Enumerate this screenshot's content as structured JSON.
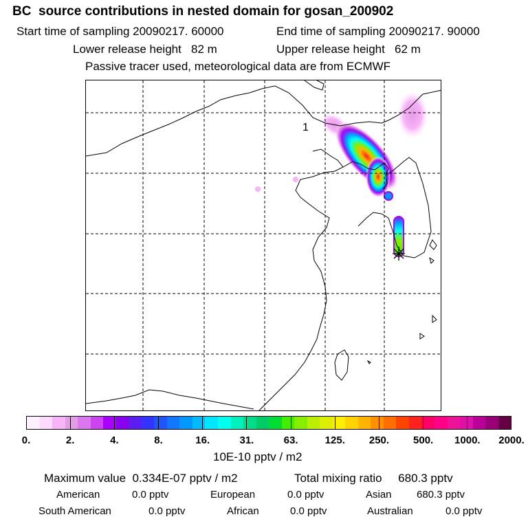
{
  "title": "BC  source contributions in nested domain for gosan_200902",
  "header": {
    "start_time": "Start time of sampling 20090217. 60000",
    "end_time": "End time of sampling 20090217. 90000",
    "lower_height": "Lower release height   82 m",
    "upper_height": "Upper release height   62 m",
    "tracer_note": "Passive tracer used, meteorological data are from ECMWF"
  },
  "map": {
    "label": "1",
    "receptor": "gosan"
  },
  "colorbar": {
    "colors": [
      "#fff0ff",
      "#ffd9ff",
      "#f7b4f7",
      "#e59be5",
      "#dd77f0",
      "#cc44ee",
      "#aa00ff",
      "#8800ee",
      "#5a1ef0",
      "#3333ff",
      "#1e55ff",
      "#1177ff",
      "#0099ff",
      "#00bbff",
      "#00e6ff",
      "#00ffee",
      "#00f0c0",
      "#00dd88",
      "#00cc66",
      "#00dd33",
      "#44ee00",
      "#88ee00",
      "#bbee00",
      "#ddee00",
      "#ffee00",
      "#ffd200",
      "#ffb400",
      "#ff9100",
      "#ff6e00",
      "#ff4400",
      "#ff2020",
      "#ff0066",
      "#ff0088",
      "#ee1199",
      "#dd11aa",
      "#bb0099",
      "#990077",
      "#660044"
    ],
    "ticks": [
      "0.",
      "2.",
      "4.",
      "8.",
      "16.",
      "31.",
      "63.",
      "125.",
      "250.",
      "500.",
      "1000.",
      "2000."
    ],
    "unit": "10E-10 pptv / m2"
  },
  "summary": {
    "maximum": "Maximum value  0.334E-07 pptv / m2",
    "total": "Total mixing ratio     680.3 pptv"
  },
  "regions": [
    {
      "name": "American",
      "value": "0.0 pptv"
    },
    {
      "name": "European",
      "value": "0.0 pptv"
    },
    {
      "name": "Asian",
      "value": "680.3 pptv"
    },
    {
      "name": "South American",
      "value": "0.0 pptv"
    },
    {
      "name": "African",
      "value": "0.0 pptv"
    },
    {
      "name": "Australian",
      "value": "0.0 pptv"
    }
  ]
}
